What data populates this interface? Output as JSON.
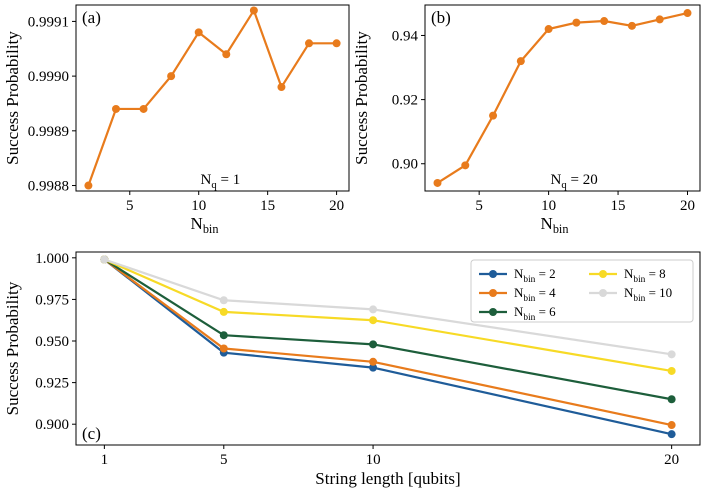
{
  "chart_data": [
    {
      "panel": "(a)",
      "type": "line",
      "x": [
        2,
        4,
        6,
        8,
        10,
        12,
        14,
        16,
        18,
        20
      ],
      "series": [
        {
          "name": "N_q = 1",
          "color": "#e87b1c",
          "values": [
            0.9988,
            0.99894,
            0.99894,
            0.999,
            0.99908,
            0.99904,
            0.99912,
            0.99898,
            0.99906,
            0.99906
          ]
        }
      ],
      "xlabel_main": "N",
      "xlabel_sub": "bin",
      "ylabel": "Success Probability",
      "xticks": [
        5,
        10,
        15,
        20
      ],
      "yticks": [
        0.9988,
        0.9989,
        0.999,
        0.9991
      ],
      "ytick_labels": [
        "0.9988",
        "0.9989",
        "0.9990",
        "0.9991"
      ],
      "xlim": [
        1.1,
        20.9
      ],
      "ylim": [
        0.99879,
        0.99913
      ],
      "annotation_main": "N",
      "annotation_sub": "q",
      "annotation_rest": " = 1"
    },
    {
      "panel": "(b)",
      "type": "line",
      "x": [
        2,
        4,
        6,
        8,
        10,
        12,
        14,
        16,
        18,
        20
      ],
      "series": [
        {
          "name": "N_q = 20",
          "color": "#e87b1c",
          "values": [
            0.894,
            0.8995,
            0.915,
            0.932,
            0.942,
            0.944,
            0.9445,
            0.943,
            0.945,
            0.947
          ]
        }
      ],
      "xlabel_main": "N",
      "xlabel_sub": "bin",
      "ylabel": "Success Probability",
      "xticks": [
        5,
        10,
        15,
        20
      ],
      "yticks": [
        0.9,
        0.92,
        0.94
      ],
      "ytick_labels": [
        "0.90",
        "0.92",
        "0.94"
      ],
      "xlim": [
        1.1,
        20.9
      ],
      "ylim": [
        0.8915,
        0.9495
      ],
      "annotation_main": "N",
      "annotation_sub": "q",
      "annotation_rest": " = 20"
    },
    {
      "panel": "(c)",
      "type": "line",
      "x": [
        1,
        5,
        10,
        20
      ],
      "series": [
        {
          "name": "N_bin = 2",
          "label_main": "N",
          "label_sub": "bin",
          "label_rest": " = 2",
          "color": "#1f5c99",
          "values": [
            0.999,
            0.943,
            0.934,
            0.894
          ]
        },
        {
          "name": "N_bin = 4",
          "label_main": "N",
          "label_sub": "bin",
          "label_rest": " = 4",
          "color": "#e87b1c",
          "values": [
            0.999,
            0.9455,
            0.9375,
            0.8995
          ]
        },
        {
          "name": "N_bin = 6",
          "label_main": "N",
          "label_sub": "bin",
          "label_rest": " = 6",
          "color": "#1d5e3b",
          "values": [
            0.999,
            0.9535,
            0.948,
            0.915
          ]
        },
        {
          "name": "N_bin = 8",
          "label_main": "N",
          "label_sub": "bin",
          "label_rest": " = 8",
          "color": "#f7da26",
          "values": [
            0.999,
            0.9675,
            0.9625,
            0.932
          ]
        },
        {
          "name": "N_bin = 10",
          "label_main": "N",
          "label_sub": "bin",
          "label_rest": " = 10",
          "color": "#d9d9d9",
          "values": [
            0.999,
            0.9745,
            0.969,
            0.942
          ]
        }
      ],
      "xlabel": "String length [qubits]",
      "ylabel": "Success Probability",
      "xticks": [
        1,
        5,
        10,
        20
      ],
      "yticks": [
        0.9,
        0.925,
        0.95,
        0.975,
        1.0
      ],
      "ytick_labels": [
        "0.900",
        "0.925",
        "0.950",
        "0.975",
        "1.000"
      ],
      "xlim": [
        0.05,
        20.95
      ],
      "ylim": [
        0.8875,
        1.0035
      ],
      "legend": "top-right"
    }
  ]
}
